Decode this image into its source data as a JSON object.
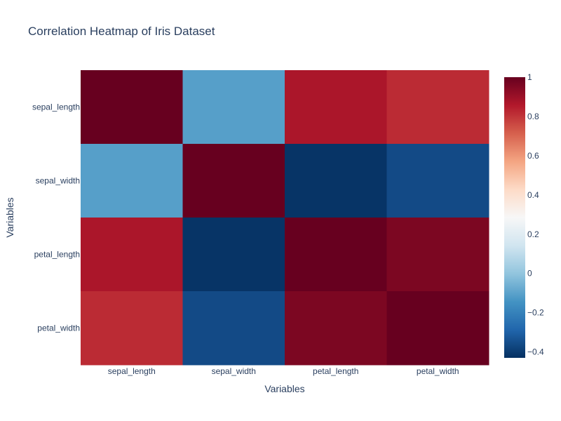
{
  "chart_data": {
    "type": "heatmap",
    "title": "Correlation Heatmap of Iris Dataset",
    "xlabel": "Variables",
    "ylabel": "Variables",
    "x_categories": [
      "sepal_length",
      "sepal_width",
      "petal_length",
      "petal_width"
    ],
    "y_categories": [
      "sepal_length",
      "sepal_width",
      "petal_length",
      "petal_width"
    ],
    "z": [
      [
        1.0,
        -0.11,
        0.87,
        0.82
      ],
      [
        -0.11,
        1.0,
        -0.42,
        -0.36
      ],
      [
        0.87,
        -0.42,
        1.0,
        0.96
      ],
      [
        0.82,
        -0.36,
        0.96,
        1.0
      ]
    ],
    "zrange": [
      -0.43,
      1.0
    ],
    "colorscale": "RdBu reversed",
    "colorbar_ticks": [
      {
        "value": 1,
        "label": "1"
      },
      {
        "value": 0.8,
        "label": "0.8"
      },
      {
        "value": 0.6,
        "label": "0.6"
      },
      {
        "value": 0.4,
        "label": "0.4"
      },
      {
        "value": 0.2,
        "label": "0.2"
      },
      {
        "value": 0,
        "label": "0"
      },
      {
        "value": -0.2,
        "label": "−0.2"
      },
      {
        "value": -0.4,
        "label": "−0.4"
      }
    ]
  }
}
